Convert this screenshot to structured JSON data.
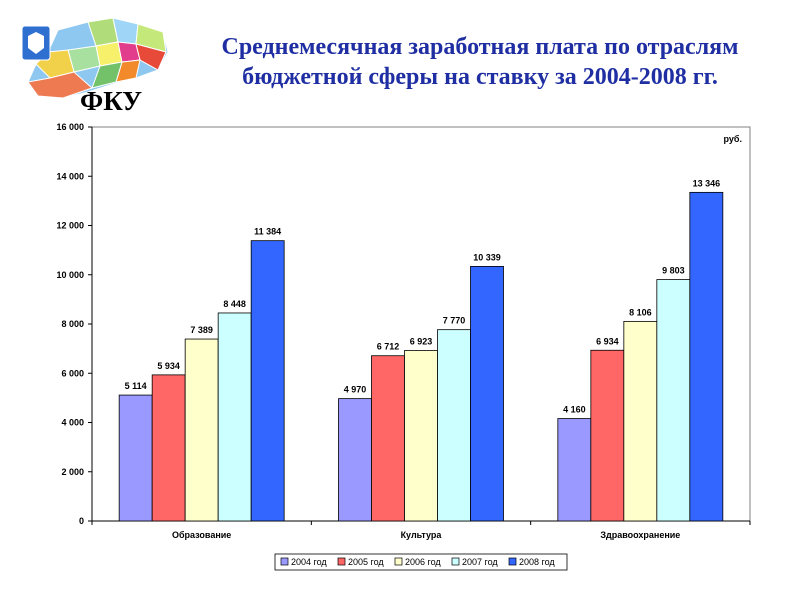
{
  "header": {
    "title_line1": "Среднемесячная заработная плата по отраслям",
    "title_line2": "бюджетной сферы на ставку за 2004-2008 гг.",
    "logo_text": "ФКУ"
  },
  "colors": {
    "title": "#1f2fa3"
  },
  "chart_data": {
    "type": "bar",
    "unit_label": "руб.",
    "categories": [
      "Образование",
      "Культура",
      "Здравоохранение"
    ],
    "ylim": [
      0,
      16000
    ],
    "yticks": [
      0,
      2000,
      4000,
      6000,
      8000,
      10000,
      12000,
      14000,
      16000
    ],
    "ytick_labels": [
      "0",
      "2 000",
      "4 000",
      "6 000",
      "8 000",
      "10 000",
      "12 000",
      "14 000",
      "16 000"
    ],
    "legend_position": "bottom",
    "series": [
      {
        "name": "2004 год",
        "color": "#9999ff",
        "values": [
          5114,
          4970,
          4160
        ],
        "labels": [
          "5 114",
          "4 970",
          "4 160"
        ]
      },
      {
        "name": "2005 год",
        "color": "#ff6666",
        "values": [
          5934,
          6712,
          6934
        ],
        "labels": [
          "5 934",
          "6 712",
          "6 934"
        ]
      },
      {
        "name": "2006 год",
        "color": "#ffffcc",
        "values": [
          7389,
          6923,
          8106
        ],
        "labels": [
          "7 389",
          "6 923",
          "8 106"
        ]
      },
      {
        "name": "2007 год",
        "color": "#ccffff",
        "values": [
          8448,
          7770,
          9803
        ],
        "labels": [
          "8 448",
          "7 770",
          "9 803"
        ]
      },
      {
        "name": "2008 год",
        "color": "#3366ff",
        "values": [
          11384,
          10339,
          13346
        ],
        "labels": [
          "11 384",
          "10 339",
          "13 346"
        ]
      }
    ]
  }
}
